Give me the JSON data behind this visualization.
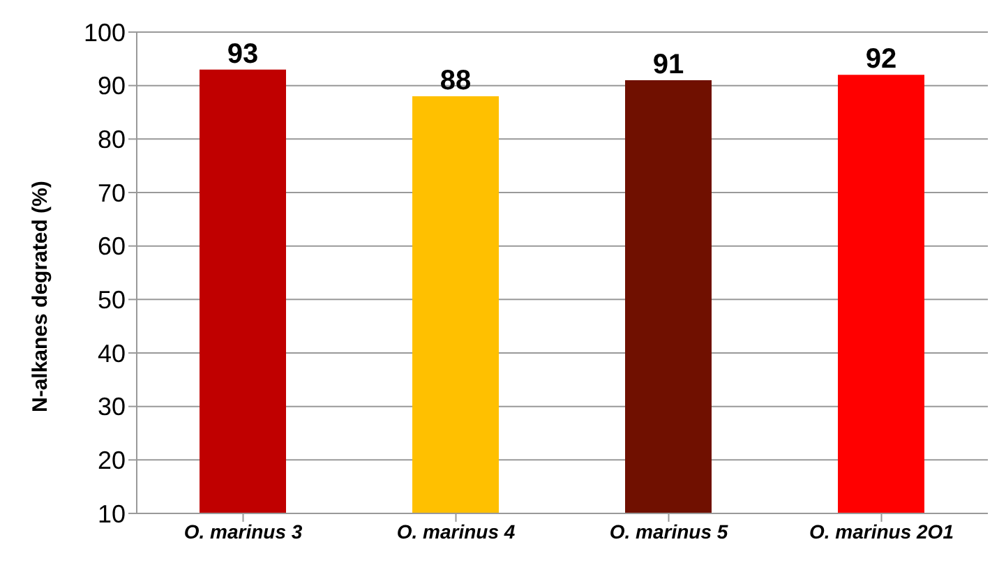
{
  "chart_data": {
    "type": "bar",
    "ylabel": "N-alkanes   degrated (%)",
    "categories": [
      "O. marinus 3",
      "O. marinus 4",
      "O. marinus 5",
      "O. marinus 2O1"
    ],
    "values": [
      93,
      88,
      91,
      92
    ],
    "colors": [
      "#c00000",
      "#ffc000",
      "#701000",
      "#ff0000"
    ],
    "ylim": [
      10,
      100
    ],
    "yticks": [
      10,
      20,
      30,
      40,
      50,
      60,
      70,
      80,
      90,
      100
    ],
    "grid": "y",
    "data_labels": true
  }
}
